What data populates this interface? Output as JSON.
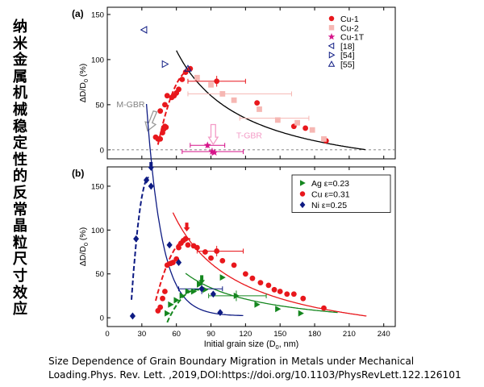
{
  "vertical_title": "纳米金属机械稳定性的反常晶粒尺寸效应",
  "caption": {
    "line1": "Size Dependence of Grain Boundary Migration in Metals under Mechanical",
    "line2": "Loading.Phys. Rev. Lett. ,2019,DOI:https://doi.org/10.1103/PhysRevLett.122.126101"
  },
  "colors": {
    "cu": "#e8171c",
    "cu2": "#f6b7b3",
    "cu1t": "#d6148a",
    "ag": "#14861e",
    "ni": "#0e1b83",
    "fit": "#000000",
    "tgbr": "#f39bc6",
    "mgbr": "#999999",
    "gbr_text": "#808080"
  },
  "chart_data": [
    {
      "type": "scatter",
      "panel_label": "(a)",
      "ylabel": "ΔD/D0 (%)",
      "xlim": [
        0,
        250
      ],
      "ylim": [
        -10,
        158
      ],
      "yticks": [
        0,
        50,
        100,
        150
      ],
      "series": [
        {
          "name": "Cu-1",
          "marker": "circle",
          "color": "#e8171c",
          "points": [
            [
              42,
              14
            ],
            [
              44,
              12
            ],
            [
              46,
              12
            ],
            [
              48,
              19
            ],
            [
              49,
              23
            ],
            [
              50,
              26
            ],
            [
              51,
              25
            ],
            [
              46,
              43
            ],
            [
              50,
              50
            ],
            [
              52,
              60
            ],
            [
              56,
              58
            ],
            [
              58,
              60
            ],
            [
              60,
              63
            ],
            [
              62,
              67
            ],
            [
              65,
              78
            ],
            [
              68,
              86
            ],
            [
              72,
              90
            ],
            [
              95,
              76
            ],
            [
              130,
              52
            ],
            [
              162,
              26
            ],
            [
              172,
              24
            ],
            [
              190,
              10
            ]
          ]
        },
        {
          "name": "Cu-2",
          "marker": "square",
          "color": "#f6b7b3",
          "points": [
            [
              78,
              80
            ],
            [
              90,
              72
            ],
            [
              100,
              62
            ],
            [
              110,
              55
            ],
            [
              132,
              45
            ],
            [
              148,
              33
            ],
            [
              165,
              30
            ],
            [
              178,
              22
            ],
            [
              188,
              12
            ]
          ]
        },
        {
          "name": "Cu-1T",
          "marker": "star",
          "color": "#d6148a",
          "points": [
            [
              87,
              5
            ],
            [
              91,
              -2
            ],
            [
              93,
              -3
            ]
          ]
        },
        {
          "name": "[18]",
          "marker": "triangle-left",
          "color": "#0e1b83",
          "points": [
            [
              32,
              133
            ]
          ]
        },
        {
          "name": "[54]",
          "marker": "triangle-right",
          "color": "#0e1b83",
          "points": [
            [
              50,
              95
            ]
          ]
        },
        {
          "name": "[55]",
          "marker": "triangle-up",
          "color": "#0e1b83",
          "points": [
            [
              70,
              90
            ]
          ]
        }
      ],
      "annotations": [
        {
          "text": "M-GBR"
        },
        {
          "text": "T-GBR"
        }
      ]
    },
    {
      "type": "scatter",
      "panel_label": "(b)",
      "xlabel": "Initial grain size (D0, nm)",
      "ylabel": "ΔD/D0 (%)",
      "xlim": [
        0,
        250
      ],
      "ylim": [
        -10,
        172
      ],
      "xticks": [
        0,
        30,
        60,
        90,
        120,
        150,
        180,
        210,
        240
      ],
      "yticks": [
        0,
        50,
        100,
        150
      ],
      "series": [
        {
          "name": "Ag  ε=0.23",
          "marker": "triangle-right",
          "color": "#14861e",
          "points": [
            [
              52,
              5
            ],
            [
              55,
              15
            ],
            [
              60,
              20
            ],
            [
              65,
              25
            ],
            [
              70,
              30
            ],
            [
              75,
              30
            ],
            [
              80,
              38
            ],
            [
              85,
              32
            ],
            [
              100,
              46
            ],
            [
              112,
              25
            ],
            [
              130,
              15
            ],
            [
              148,
              10
            ],
            [
              168,
              5
            ]
          ]
        },
        {
          "name": "Cu  ε=0.31",
          "marker": "circle",
          "color": "#e8171c",
          "points": [
            [
              44,
              8
            ],
            [
              46,
              12
            ],
            [
              48,
              22
            ],
            [
              50,
              30
            ],
            [
              52,
              60
            ],
            [
              55,
              62
            ],
            [
              57,
              63
            ],
            [
              60,
              67
            ],
            [
              62,
              80
            ],
            [
              64,
              85
            ],
            [
              66,
              88
            ],
            [
              68,
              90
            ],
            [
              70,
              83
            ],
            [
              75,
              82
            ],
            [
              78,
              80
            ],
            [
              85,
              75
            ],
            [
              90,
              68
            ],
            [
              95,
              76
            ],
            [
              100,
              65
            ],
            [
              110,
              60
            ],
            [
              120,
              50
            ],
            [
              126,
              45
            ],
            [
              133,
              40
            ],
            [
              140,
              37
            ],
            [
              145,
              32
            ],
            [
              150,
              30
            ],
            [
              156,
              27
            ],
            [
              162,
              27
            ],
            [
              170,
              22
            ],
            [
              188,
              11
            ]
          ]
        },
        {
          "name": "Ni  ε=0.25",
          "marker": "diamond",
          "color": "#0e1b83",
          "points": [
            [
              22,
              2
            ],
            [
              25,
              90
            ],
            [
              34,
              157
            ],
            [
              38,
              150
            ],
            [
              54,
              83
            ],
            [
              62,
              63
            ],
            [
              82,
              33
            ],
            [
              92,
              27
            ],
            [
              98,
              6
            ]
          ]
        }
      ]
    }
  ]
}
